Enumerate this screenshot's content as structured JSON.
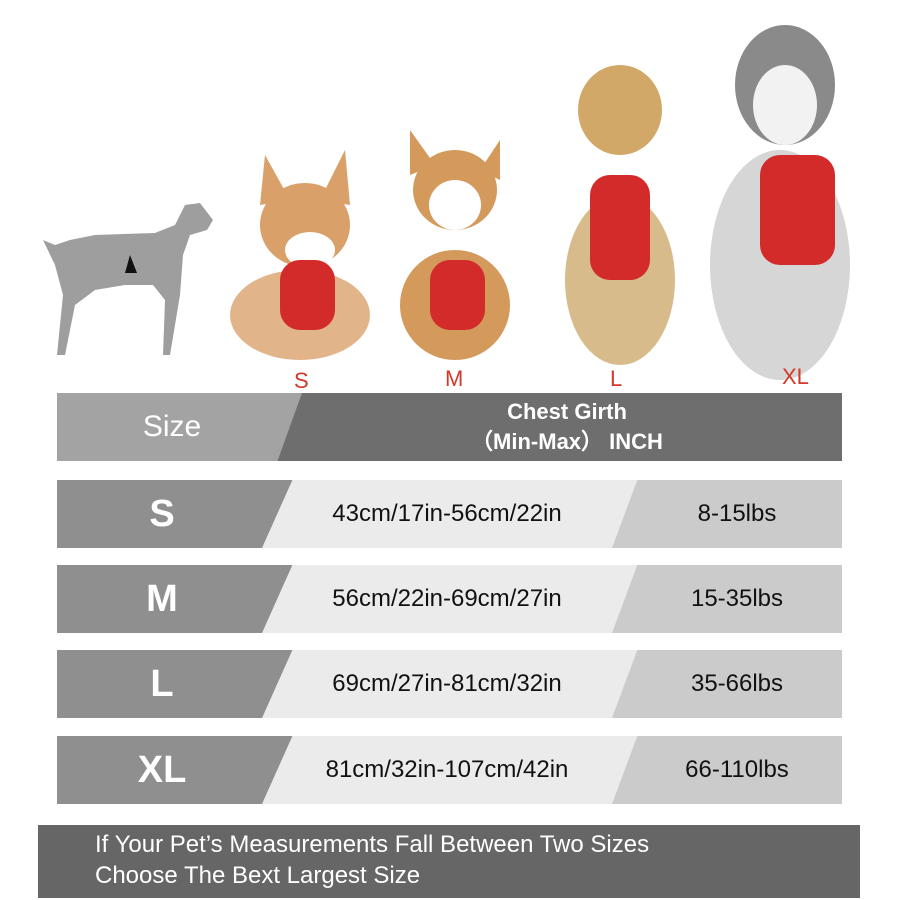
{
  "size_labels": [
    "S",
    "M",
    "L",
    "XL"
  ],
  "header": {
    "size": "Size",
    "girth_line1": "Chest Girth",
    "girth_line2": "（Min-Max） INCH"
  },
  "rows": [
    {
      "size": "S",
      "girth": "43cm/17in-56cm/22in",
      "weight": "8-15lbs"
    },
    {
      "size": "M",
      "girth": "56cm/22in-69cm/27in",
      "weight": "15-35lbs"
    },
    {
      "size": "L",
      "girth": "69cm/27in-81cm/32in",
      "weight": "35-66lbs"
    },
    {
      "size": "XL",
      "girth": "81cm/32in-107cm/42in",
      "weight": "66-110lbs"
    }
  ],
  "footer": {
    "line1": "If Your Pet’s Measurements Fall Between Two Sizes",
    "line2": "Choose The Bext Largest Size"
  },
  "colors": {
    "harness": "#d32a2a",
    "label": "#d2392a",
    "header_dark": "#6e6e6e",
    "footer": "#666666"
  }
}
